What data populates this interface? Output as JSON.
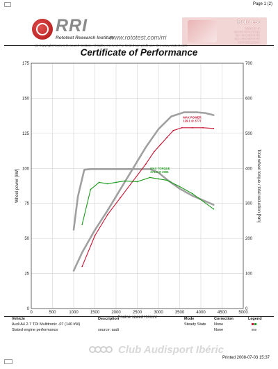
{
  "page": {
    "page_number": "Page 1 (2)"
  },
  "header": {
    "brand": "RRI",
    "company": "Rototest Research Institute",
    "copyright": "(c) Copyright Rototest Research Institute. All rights reserved. For limited non-profit use. See www.rototest.com.",
    "website": "www.rototest.com/rri",
    "firm": "Rototest",
    "address_lines": [
      "Sjölunda 10",
      "SE-141 32 Huddinge",
      "Tel +46 8 600 34 00",
      "Fax +46 8 600 34 01",
      "www.rototest.com"
    ]
  },
  "title": "Certificate of Performance",
  "chart_data": {
    "type": "line",
    "xlabel": "Engine speed [1/min]",
    "ylabel_left": "Wheel power [kW]",
    "ylabel_right": "Total wheel torque / total reduction [Nm]",
    "xlim": [
      0,
      5000
    ],
    "ylim_left": [
      0,
      175
    ],
    "ylim_right": [
      0,
      700
    ],
    "x_ticks": [
      0,
      500,
      1000,
      1500,
      2000,
      2500,
      3000,
      3500,
      4000,
      4500,
      5000
    ],
    "y_ticks_left": [
      0,
      25,
      50,
      75,
      100,
      125,
      150,
      175
    ],
    "y_ticks_right": [
      0,
      100,
      200,
      300,
      400,
      500,
      600,
      700
    ],
    "grid": true,
    "series": [
      {
        "color": "#c8102e",
        "axis": "left",
        "x": [
          1200,
          1500,
          1800,
          2100,
          2400,
          2700,
          2900,
          3050,
          3200,
          3350,
          3550,
          3800,
          4050,
          4300
        ],
        "y": [
          30,
          52,
          67,
          79,
          91,
          103,
          112,
          117,
          122,
          127,
          129,
          129,
          129,
          128.5
        ]
      },
      {
        "color": "#1a9a1a",
        "axis": "right",
        "x": [
          1200,
          1400,
          1600,
          1800,
          2000,
          2200,
          2500,
          2800,
          3000,
          3200,
          3500,
          3800,
          4300
        ],
        "y": [
          240,
          340,
          360,
          356,
          360,
          364,
          362,
          374,
          370,
          366,
          348,
          328,
          284
        ]
      },
      {
        "color": "#a0a0a0",
        "axis": "left",
        "x": [
          1000,
          1200,
          1500,
          1800,
          2100,
          2400,
          2700,
          3000,
          3300,
          3600,
          3900,
          4100,
          4300
        ],
        "y": [
          27,
          40,
          56,
          70,
          85,
          100,
          115,
          128,
          137,
          140,
          140,
          139.5,
          138
        ]
      },
      {
        "color": "#a0a0a0",
        "axis": "right",
        "x": [
          1000,
          1100,
          1250,
          1400,
          2000,
          2500,
          2800,
          3000,
          3200,
          3500,
          3800,
          4300
        ],
        "y": [
          225,
          320,
          396,
          398,
          398,
          398,
          398,
          388,
          368,
          342,
          322,
          296
        ]
      }
    ],
    "annotations": [
      {
        "text": [
          "MAX POWER",
          "129.1 @ 3777"
        ],
        "color": "#c8102e",
        "x": 3777,
        "y": 129.1
      },
      {
        "text": [
          "MAX TORQUE",
          "371.3 @ 3005"
        ],
        "color": "#1a9a1a",
        "x": 3005,
        "y": 371.3
      }
    ]
  },
  "info_table": {
    "headers": [
      "Vehicle",
      "Description",
      "Mode",
      "Correction",
      "Legend"
    ],
    "rows": [
      [
        "Audi A4 2.7 TDI Multitronic -07 (140 kW)",
        "",
        "Steady State",
        "None",
        ""
      ],
      [
        "Stated engine performance",
        "source: audi",
        "",
        "None",
        ""
      ]
    ],
    "legend_colors": [
      [
        "#c8102e",
        "#1a9a1a"
      ],
      [
        "#a0a0a0",
        "#a0a0a0"
      ]
    ]
  },
  "footer": {
    "watermark": "Club Audisport Ibéric",
    "printed": "Printed 2008-07-03 15:37"
  }
}
